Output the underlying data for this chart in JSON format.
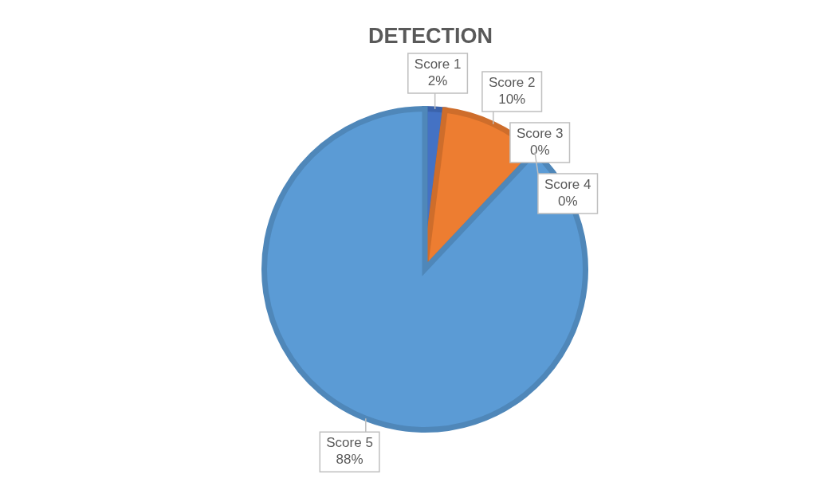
{
  "chart_data": {
    "type": "pie",
    "title": "DETECTION",
    "categories": [
      "Score 1",
      "Score 2",
      "Score 3",
      "Score 4",
      "Score 5"
    ],
    "values": [
      2,
      10,
      0,
      0,
      88
    ],
    "value_labels": [
      "2%",
      "10%",
      "0%",
      "0%",
      "88%"
    ],
    "colors": [
      "#4472c4",
      "#ed7d31",
      "#a5a5a5",
      "#ffc000",
      "#5b9bd5"
    ]
  }
}
